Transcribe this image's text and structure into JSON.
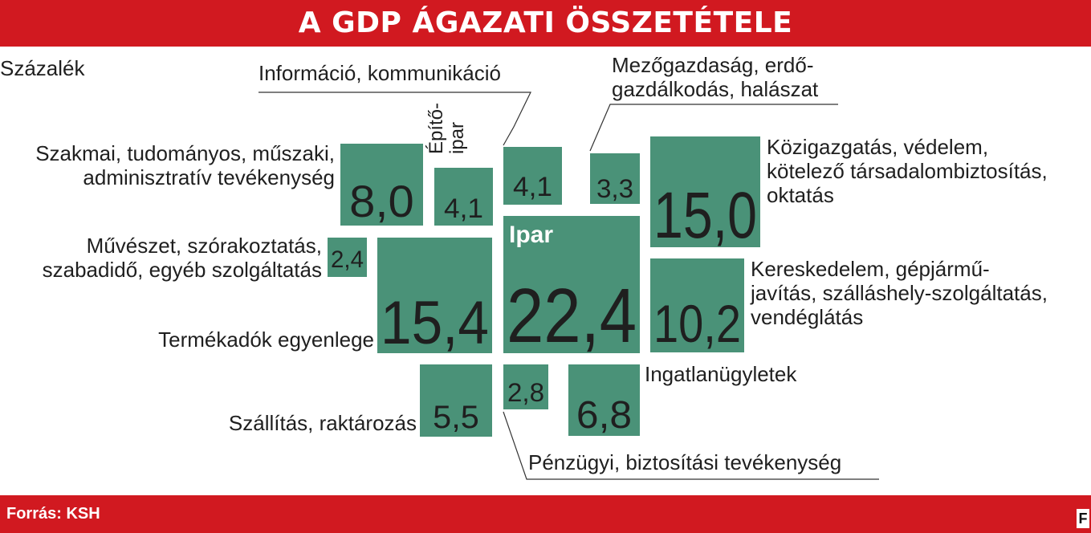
{
  "title": "A GDP ÁGAZATI ÖSSZETÉTELE",
  "unit": "Százalék",
  "source": "Forrás: KSH",
  "brand": "F",
  "colors": {
    "header": "#d11920",
    "tile": "#4a9278",
    "text": "#1f1f1f"
  },
  "chart_data": {
    "type": "treemap",
    "unit": "Százalék",
    "items": [
      {
        "label": "Szakmai, tudományos, műszaki, adminisztratív tevékenység",
        "value": 8.0,
        "display": "8,0"
      },
      {
        "label": "Építőipar",
        "value": 4.1,
        "display": "4,1"
      },
      {
        "label": "Információ, kommunikáció",
        "value": 4.1,
        "display": "4,1"
      },
      {
        "label": "Mezőgazdaság, erdőgazdálkodás, halászat",
        "value": 3.3,
        "display": "3,3"
      },
      {
        "label": "Közigazgatás, védelem, kötelező társadalombiztosítás, oktatás",
        "value": 15.0,
        "display": "15,0"
      },
      {
        "label": "Művészet, szórakoztatás, szabadidő, egyéb szolgáltatás",
        "value": 2.4,
        "display": "2,4"
      },
      {
        "label": "Termékadók egyenlege",
        "value": 15.4,
        "display": "15,4"
      },
      {
        "label": "Ipar",
        "value": 22.4,
        "display": "22,4"
      },
      {
        "label": "Kereskedelem, gépjárműjavítás, szálláshely-szolgáltatás, vendéglátás",
        "value": 10.2,
        "display": "10,2"
      },
      {
        "label": "Szállítás, raktározás",
        "value": 5.5,
        "display": "5,5"
      },
      {
        "label": "Pénzügyi, biztosítási tevékenység",
        "value": 2.8,
        "display": "2,8"
      },
      {
        "label": "Ingatlanügyletek",
        "value": 6.8,
        "display": "6,8"
      }
    ]
  },
  "labels": {
    "szakmai": [
      "Szakmai, tudományos, műszaki,",
      "adminisztratív tevékenység"
    ],
    "epito": [
      "Építő-",
      "ipar"
    ],
    "info": "Információ, kommunikáció",
    "mezo": [
      "Mezőgazdaság, erdő-",
      "gazdálkodás, halászat"
    ],
    "kozig": [
      "Közigazgatás, védelem,",
      "kötelező társadalombiztosítás,",
      "oktatás"
    ],
    "muveszet": [
      "Művészet, szórakoztatás,",
      "szabadidő, egyéb szolgáltatás"
    ],
    "termekado": "Termékadók egyenlege",
    "ipar": "Ipar",
    "keresk": [
      "Kereskedelem, gépjármű-",
      "javítás, szálláshely-szolgáltatás,",
      "vendéglátás"
    ],
    "szallitas": "Szállítás, raktározás",
    "penzugy": "Pénzügyi, biztosítási tevékenység",
    "ingatlan": "Ingatlanügyletek"
  }
}
